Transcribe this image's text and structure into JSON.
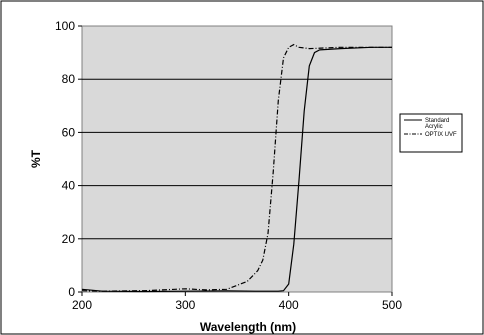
{
  "chart_data": {
    "type": "line",
    "xlabel": "Wavelength (nm)",
    "ylabel": "%T",
    "xlim": [
      200,
      500
    ],
    "ylim": [
      0,
      100
    ],
    "x_ticks": [
      200,
      300,
      400,
      500
    ],
    "y_ticks": [
      0,
      20,
      40,
      60,
      80,
      100
    ],
    "grid": "horizontal",
    "plot_background": "#d9d9d9",
    "legend_position": "right",
    "series": [
      {
        "name": "Standard Acrylic",
        "line_style": "solid",
        "color": "#000000",
        "x": [
          200,
          220,
          260,
          300,
          340,
          370,
          390,
          395,
          400,
          405,
          410,
          415,
          420,
          425,
          430,
          450,
          480,
          500
        ],
        "y": [
          1,
          0.3,
          0.2,
          0.3,
          0.4,
          0.3,
          0.3,
          0.5,
          3,
          18,
          42,
          68,
          85,
          90,
          91,
          91.5,
          92,
          92
        ]
      },
      {
        "name": "OPTIX UVF",
        "line_style": "dash-dot",
        "color": "#000000",
        "x": [
          200,
          220,
          260,
          290,
          300,
          320,
          340,
          360,
          370,
          375,
          380,
          385,
          390,
          395,
          400,
          405,
          410,
          420,
          450,
          500
        ],
        "y": [
          0.5,
          0.3,
          0.5,
          1,
          1.2,
          0.8,
          1,
          4,
          8,
          12,
          22,
          45,
          72,
          88,
          92,
          93,
          92,
          91.5,
          92,
          92
        ]
      }
    ],
    "legend": [
      {
        "label_lines": [
          "Standard",
          "Acrylic"
        ],
        "line_style": "solid"
      },
      {
        "label_lines": [
          "OPTIX UVF"
        ],
        "line_style": "dash-dot"
      }
    ]
  }
}
